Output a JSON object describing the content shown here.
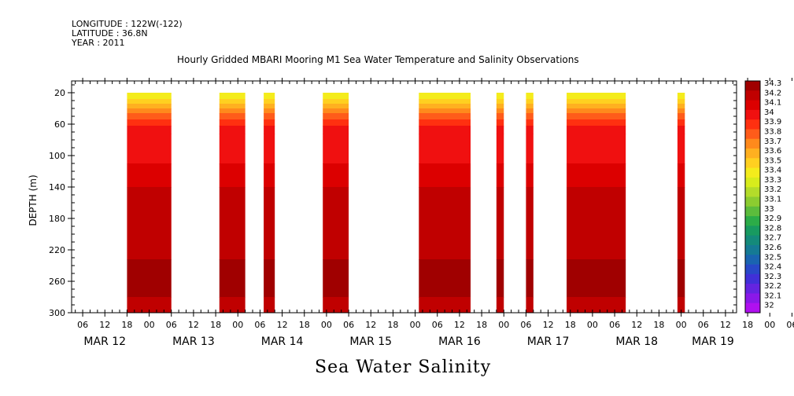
{
  "header": {
    "longitude": "LONGITUDE : 122W(-122)",
    "latitude": "LATITUDE : 36.8N",
    "year": "YEAR : 2011"
  },
  "title": "Hourly Gridded MBARI Mooring M1 Sea Water Temperature and Salinity Observations",
  "bottom_title": "Sea Water Salinity",
  "chart_data": {
    "type": "heatmap",
    "title": "Hourly Gridded MBARI Mooring M1 Sea Water Temperature and Salinity Observations",
    "xlabel": "",
    "ylabel": "DEPTH (m)",
    "ylim": [
      300,
      5
    ],
    "y_ticks": [
      20,
      60,
      100,
      140,
      180,
      220,
      260,
      300
    ],
    "x_hour_ticks": [
      "06",
      "12",
      "18",
      "00",
      "06",
      "12",
      "18",
      "00",
      "06",
      "12",
      "18",
      "00",
      "06",
      "12",
      "18",
      "00",
      "06",
      "12",
      "18",
      "00",
      "06",
      "12",
      "18",
      "00",
      "06",
      "12",
      "18",
      "00",
      "06",
      "12",
      "18",
      "00",
      "06"
    ],
    "x_day_labels": [
      "MAR 12",
      "MAR 13",
      "MAR 14",
      "MAR 15",
      "MAR 16",
      "MAR 17",
      "MAR 18",
      "MAR 19"
    ],
    "colorbar_levels": [
      "34.3",
      "34.2",
      "34.1",
      "34",
      "33.9",
      "33.8",
      "33.7",
      "33.6",
      "33.5",
      "33.4",
      "33.3",
      "33.2",
      "33.1",
      "33",
      "32.9",
      "32.8",
      "32.7",
      "32.6",
      "32.5",
      "32.4",
      "32.3",
      "32.2",
      "32.1",
      "32"
    ],
    "colorbar_colors": [
      "#a00000",
      "#c00000",
      "#dc0000",
      "#f01010",
      "#ff3010",
      "#ff5c1a",
      "#ff8a1c",
      "#ffb020",
      "#ffd020",
      "#f4ec1c",
      "#d8ec1c",
      "#b4dc2a",
      "#8ccc30",
      "#5cbc3c",
      "#2cac48",
      "#189a60",
      "#148a7a",
      "#157a94",
      "#1a64b0",
      "#2848c8",
      "#4030d8",
      "#6424e0",
      "#8a18e8",
      "#b010f0"
    ],
    "data_blocks": [
      {
        "start": "MAR 12 18:00",
        "end": "MAR 13 06:00"
      },
      {
        "start": "MAR 13 19:00",
        "end": "MAR 14 02:00"
      },
      {
        "start": "MAR 14 07:00",
        "end": "MAR 14 10:00"
      },
      {
        "start": "MAR 14 23:00",
        "end": "MAR 15 06:00"
      },
      {
        "start": "MAR 16 01:00",
        "end": "MAR 16 15:00"
      },
      {
        "start": "MAR 16 22:00",
        "end": "MAR 17 00:00"
      },
      {
        "start": "MAR 17 06:00",
        "end": "MAR 17 08:00"
      },
      {
        "start": "MAR 17 17:00",
        "end": "MAR 18 09:00"
      },
      {
        "start": "MAR 18 23:00",
        "end": "MAR 19 01:00"
      }
    ],
    "depth_profile": [
      {
        "depth_top": 20,
        "depth_bottom": 28,
        "salinity": 33.4
      },
      {
        "depth_top": 28,
        "depth_bottom": 34,
        "salinity": 33.5
      },
      {
        "depth_top": 34,
        "depth_bottom": 40,
        "salinity": 33.6
      },
      {
        "depth_top": 40,
        "depth_bottom": 46,
        "salinity": 33.7
      },
      {
        "depth_top": 46,
        "depth_bottom": 54,
        "salinity": 33.8
      },
      {
        "depth_top": 54,
        "depth_bottom": 62,
        "salinity": 33.9
      },
      {
        "depth_top": 62,
        "depth_bottom": 72,
        "salinity": 34.0
      },
      {
        "depth_top": 72,
        "depth_bottom": 110,
        "salinity": 34.05
      },
      {
        "depth_top": 110,
        "depth_bottom": 140,
        "salinity": 34.1
      },
      {
        "depth_top": 140,
        "depth_bottom": 232,
        "salinity": 34.2
      },
      {
        "depth_top": 232,
        "depth_bottom": 280,
        "salinity": 34.3
      },
      {
        "depth_top": 280,
        "depth_bottom": 300,
        "salinity": 34.2
      }
    ]
  }
}
